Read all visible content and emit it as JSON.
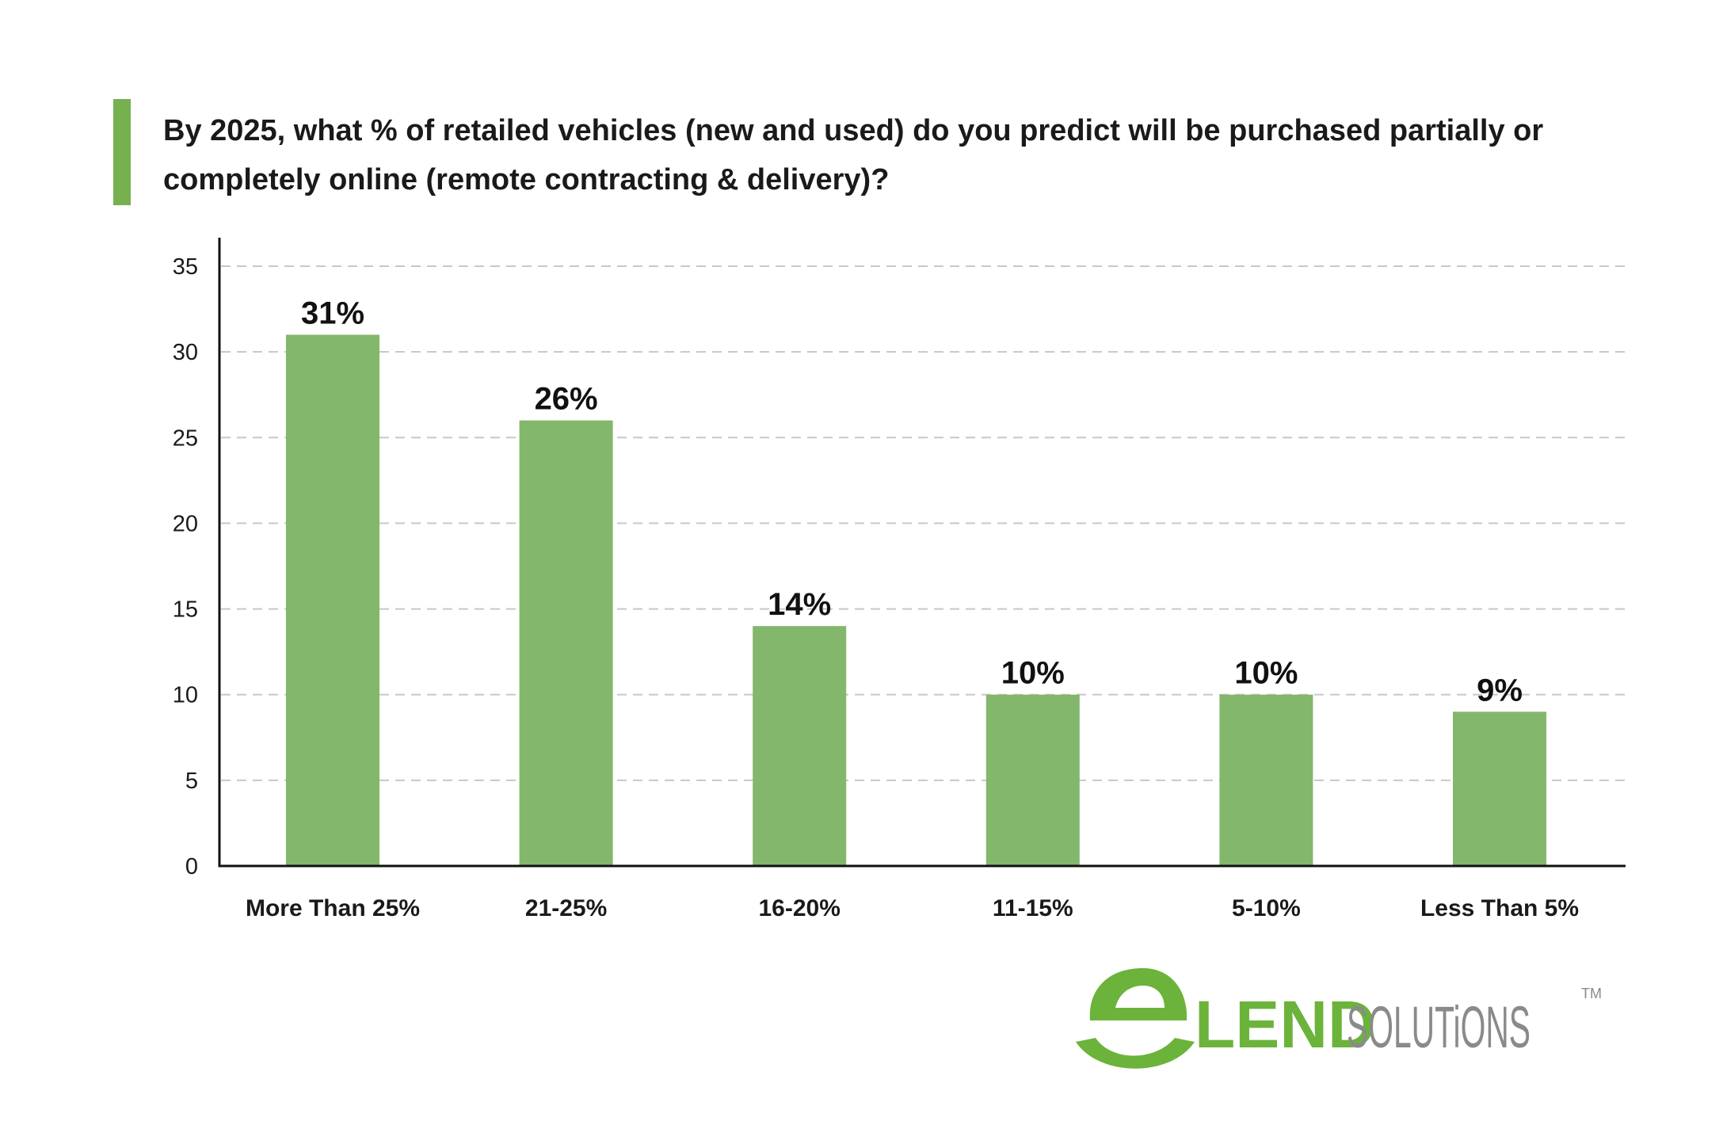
{
  "title": "By 2025, what % of retailed vehicles (new and used) do you predict will be purchased partially or completely online (remote contracting & delivery)?",
  "colors": {
    "bar": "#83b76c",
    "accent": "#76b04f",
    "grid": "#c8c8c8",
    "axis": "#111111",
    "logo_green": "#6bb33a",
    "logo_gray": "#8a8a8a"
  },
  "logo": {
    "icon": "e-swoosh-logo-icon",
    "brand": "LEND",
    "suffix": "SOLUTiONS",
    "tm": "TM"
  },
  "chart_data": {
    "type": "bar",
    "title": "By 2025, what % of retailed vehicles (new and used) do you predict will be purchased partially or completely online (remote contracting & delivery)?",
    "xlabel": "",
    "ylabel": "",
    "categories": [
      "More Than 25%",
      "21-25%",
      "16-20%",
      "11-15%",
      "5-10%",
      "Less Than 5%"
    ],
    "values": [
      31,
      26,
      14,
      10,
      10,
      9
    ],
    "data_labels": [
      "31%",
      "26%",
      "14%",
      "10%",
      "10%",
      "9%"
    ],
    "ylim": [
      0,
      35
    ],
    "yticks": [
      0,
      5,
      10,
      15,
      20,
      25,
      30,
      35
    ],
    "grid": true,
    "legend": "none"
  }
}
